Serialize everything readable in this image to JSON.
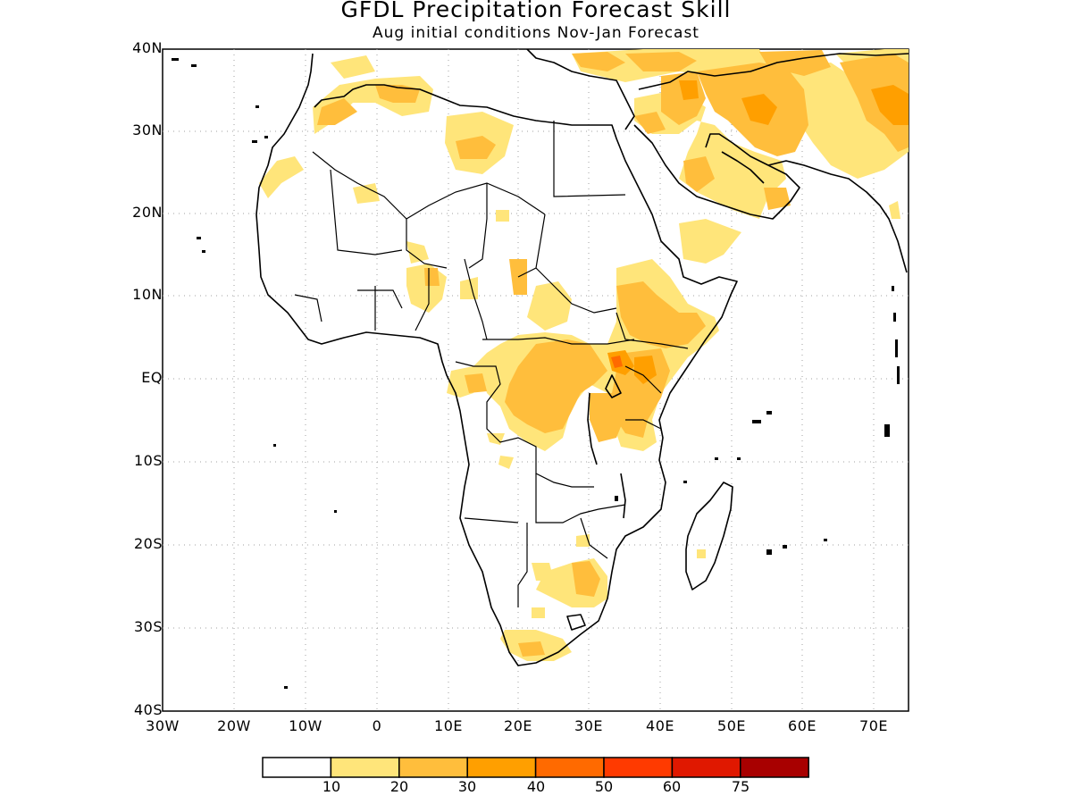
{
  "title": "GFDL Precipitation Forecast Skill",
  "subtitle": "Aug initial conditions  Nov-Jan Forecast",
  "lat_labels": [
    "40N",
    "30N",
    "20N",
    "10N",
    "EQ",
    "10S",
    "20S",
    "30S",
    "40S"
  ],
  "lon_labels": [
    "30W",
    "20W",
    "10W",
    "0",
    "10E",
    "20E",
    "30E",
    "40E",
    "50E",
    "60E",
    "70E"
  ],
  "colorbar": {
    "bins": [
      {
        "color": "#ffffff"
      },
      {
        "color": "#ffe57a"
      },
      {
        "color": "#ffbe3c"
      },
      {
        "color": "#ff9f00"
      },
      {
        "color": "#ff6a00"
      },
      {
        "color": "#ff3a00"
      },
      {
        "color": "#e01800"
      },
      {
        "color": "#a80000"
      }
    ],
    "labels": [
      "10",
      "20",
      "30",
      "40",
      "50",
      "60",
      "75"
    ]
  }
}
